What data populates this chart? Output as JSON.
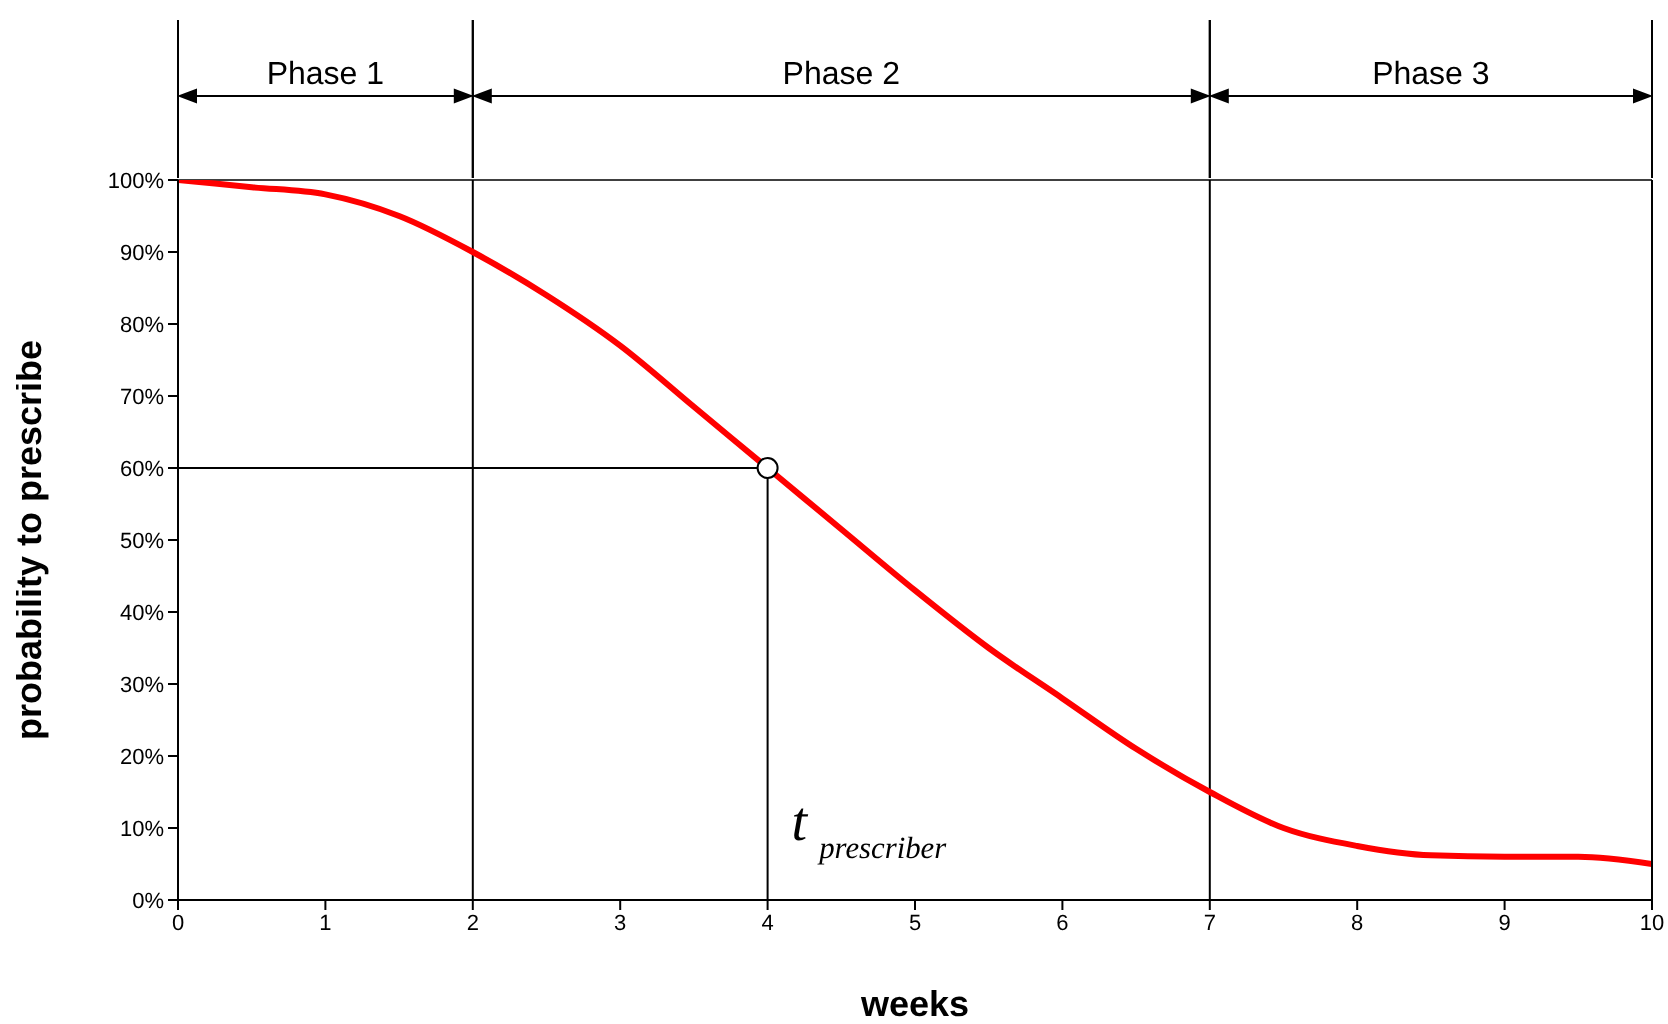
{
  "chart_data": {
    "type": "line",
    "xlabel": "weeks",
    "ylabel": "probability to prescribe",
    "xlim": [
      0,
      10
    ],
    "xticks": [
      0,
      1,
      2,
      3,
      4,
      5,
      6,
      7,
      8,
      9,
      10
    ],
    "ylim": [
      0,
      100
    ],
    "yticks": [
      {
        "value": 0,
        "label": "0%"
      },
      {
        "value": 10,
        "label": "10%"
      },
      {
        "value": 20,
        "label": "20%"
      },
      {
        "value": 30,
        "label": "30%"
      },
      {
        "value": 40,
        "label": "40%"
      },
      {
        "value": 50,
        "label": "50%"
      },
      {
        "value": 60,
        "label": "60%"
      },
      {
        "value": 70,
        "label": "70%"
      },
      {
        "value": 80,
        "label": "80%"
      },
      {
        "value": 90,
        "label": "90%"
      },
      {
        "value": 100,
        "label": "100%"
      }
    ],
    "series": [
      {
        "color": "#ff0000",
        "x": [
          0,
          0.5,
          1,
          1.5,
          2,
          2.5,
          3,
          3.5,
          4,
          4.5,
          5,
          5.5,
          6,
          6.5,
          7,
          7.5,
          8,
          8.5,
          9,
          9.5,
          10
        ],
        "values": [
          100,
          99,
          98,
          95,
          90,
          84,
          77,
          68.5,
          60,
          51.5,
          43,
          35,
          28,
          21,
          15,
          10,
          7.5,
          6.2,
          6,
          6,
          5
        ]
      },
      {
        "type": "line",
        "color": "#000000",
        "x": [
          0,
          4,
          4
        ],
        "values": [
          60,
          60,
          0
        ]
      },
      {
        "type": "scatter",
        "color": "#000000",
        "marker": "circle",
        "x": [
          4
        ],
        "values": [
          60
        ]
      }
    ],
    "ref_lines": [
      {
        "axis": "y",
        "value": 100,
        "color": "#000000"
      },
      {
        "axis": "x",
        "value": 2,
        "color": "#000000"
      },
      {
        "axis": "x",
        "value": 7,
        "color": "#000000"
      }
    ],
    "annotations": [
      "Phase 1",
      "Phase 2",
      "Phase 3",
      {
        "text": "t$_{prescriber}$",
        "x": 4,
        "y": 10
      }
    ],
    "grid": false,
    "legend": false
  }
}
